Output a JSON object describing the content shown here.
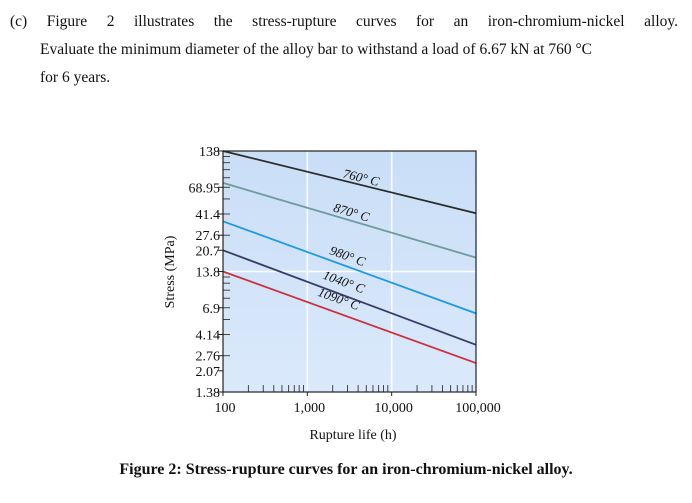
{
  "question": {
    "line1": "(c) Figure 2 illustrates the stress-rupture curves for an iron-chromium-nickel alloy.",
    "line2": "Evaluate the minimum diameter of the alloy bar to withstand a load of 6.67 kN at 760 °C",
    "line3": "for 6 years."
  },
  "caption": "Figure 2: Stress-rupture curves for an iron-chromium-nickel alloy.",
  "chart_data": {
    "type": "line",
    "xlabel": "Rupture life (h)",
    "ylabel": "Stress (MPa)",
    "x_scale": "log",
    "y_scale": "log",
    "xlim": [
      100,
      100000
    ],
    "ylim": [
      1.38,
      138
    ],
    "x_ticks": [
      "100",
      "1,000",
      "10,000",
      "100,000"
    ],
    "y_ticks": [
      "138",
      "68.95",
      "41.4",
      "27.6",
      "20.7",
      "13.8",
      "6.9",
      "4.14",
      "2.76",
      "2.07",
      "1.38"
    ],
    "grid": true,
    "series": [
      {
        "name": "760° C",
        "color": "#2b2b2b",
        "x": [
          100,
          100000
        ],
        "y": [
          138,
          42
        ]
      },
      {
        "name": "870° C",
        "color": "#6e9b9b",
        "x": [
          100,
          100000
        ],
        "y": [
          75,
          18
        ]
      },
      {
        "name": "980° C",
        "color": "#1f9ae0",
        "x": [
          100,
          100000
        ],
        "y": [
          36,
          6.2
        ]
      },
      {
        "name": "1040° C",
        "color": "#3b3b6b",
        "x": [
          100,
          100000
        ],
        "y": [
          20.7,
          3.4
        ]
      },
      {
        "name": "1090° C",
        "color": "#c8323c",
        "x": [
          100,
          100000
        ],
        "y": [
          13.8,
          2.4
        ]
      }
    ]
  }
}
